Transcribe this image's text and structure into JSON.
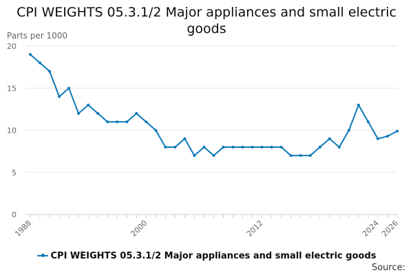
{
  "chart_data": {
    "type": "line",
    "title": "CPI WEIGHTS 05.3.1/2 Major appliances and small electric goods",
    "ylabel": "Parts per 1000",
    "xlabel": "",
    "ylim": [
      0,
      20
    ],
    "yticks": [
      0,
      5,
      10,
      15,
      20
    ],
    "xlim": [
      1988,
      2026
    ],
    "xticks": [
      1988,
      2000,
      2012,
      2024,
      2026
    ],
    "x": [
      1988,
      1989,
      1990,
      1991,
      1992,
      1993,
      1994,
      1995,
      1996,
      1997,
      1998,
      1999,
      2000,
      2001,
      2002,
      2003,
      2004,
      2005,
      2006,
      2007,
      2008,
      2009,
      2010,
      2011,
      2012,
      2013,
      2014,
      2015,
      2016,
      2017,
      2018,
      2019,
      2020,
      2021,
      2022,
      2023,
      2024,
      2025,
      2026
    ],
    "series": [
      {
        "name": "CPI WEIGHTS 05.3.1/2 Major appliances and small electric goods",
        "values": [
          19,
          18,
          17,
          14,
          15,
          12,
          13,
          12,
          11,
          11,
          11,
          12,
          11,
          10,
          8,
          8,
          9,
          7,
          8,
          7,
          8,
          8,
          8,
          8,
          8,
          8,
          8,
          7,
          7,
          7,
          8,
          9,
          8,
          10,
          13,
          11,
          9,
          9.3,
          9.9
        ],
        "color": "#0b78b8"
      }
    ],
    "legend": "bottom",
    "grid": true,
    "source_label": "Source:"
  }
}
